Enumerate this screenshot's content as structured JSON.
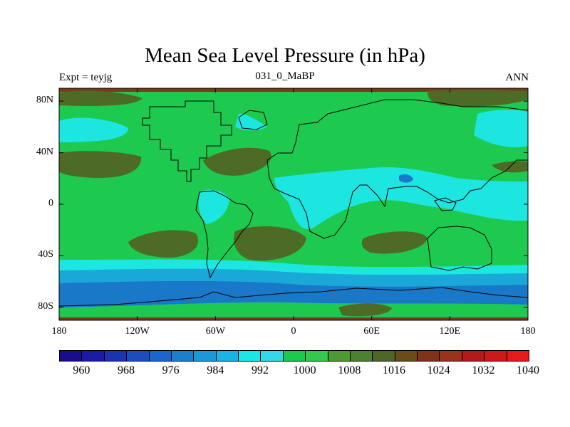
{
  "title": "Mean Sea Level Pressure (in hPa)",
  "subtitle": {
    "left": "Expt = teyjg",
    "center": "031_0_MaBP",
    "right": "ANN"
  },
  "map": {
    "projection": "cylindrical equidistant",
    "lon_range": [
      -180,
      180
    ],
    "lat_range": [
      -90,
      90
    ],
    "y_ticks": [
      {
        "lat": 80,
        "label": "80N"
      },
      {
        "lat": 40,
        "label": "40N"
      },
      {
        "lat": 0,
        "label": "0"
      },
      {
        "lat": -40,
        "label": "40S"
      },
      {
        "lat": -80,
        "label": "80S"
      }
    ],
    "x_ticks": [
      {
        "lon": -180,
        "label": "180"
      },
      {
        "lon": -120,
        "label": "120W"
      },
      {
        "lon": -60,
        "label": "60W"
      },
      {
        "lon": 0,
        "label": "0"
      },
      {
        "lon": 60,
        "label": "60E"
      },
      {
        "lon": 120,
        "label": "120E"
      },
      {
        "lon": 180,
        "label": "180"
      }
    ]
  },
  "legend": {
    "colors": [
      "#1a0d8c",
      "#1a1aa6",
      "#1a33b3",
      "#1a4dbf",
      "#1a66cc",
      "#1a80cc",
      "#1a99d9",
      "#1ab3e6",
      "#1ae6e6",
      "#33d9e6",
      "#1ac94d",
      "#33c94d",
      "#4d9933",
      "#4d8033",
      "#4d6626",
      "#664d1a",
      "#803319",
      "#993319",
      "#b31a1a",
      "#cc1a1a",
      "#e61a1a"
    ],
    "labels": [
      "960",
      "968",
      "976",
      "984",
      "992",
      "1000",
      "1008",
      "1016",
      "1024",
      "1032",
      "1040"
    ]
  },
  "palette": {
    "ocean_base": "#1ec94f",
    "high_1016": "#4d6b26",
    "high_1024": "#7a3b1a",
    "low_1000": "#1de5e0",
    "low_992": "#1aa8d8",
    "low_984": "#1a78c8",
    "coast": "#000000"
  }
}
